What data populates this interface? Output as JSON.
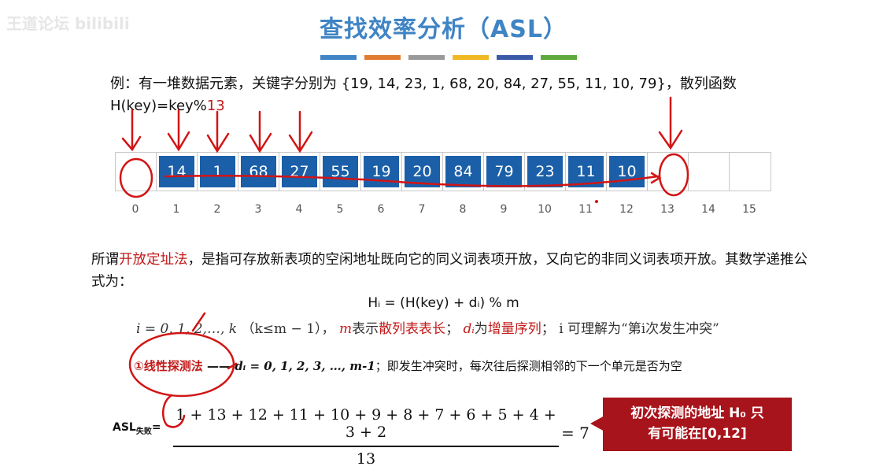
{
  "watermark": "王道论坛 bilibili",
  "title": "查找效率分析（ASL）",
  "title_bar_colors": [
    "#3f84c4",
    "#e07b30",
    "#9a9a9a",
    "#f0b823",
    "#3a5aa8",
    "#5ea83c"
  ],
  "example": {
    "prefix": "例：有一堆数据元素，关键字分别为 {19, 14, 23, 1, 68, 20, 84, 27, 55, 11, 10, 79}，散列函数",
    "hash_text": "H(key)=key%",
    "hash_mod": "13"
  },
  "table": {
    "cells": [
      "",
      "14",
      "1",
      "68",
      "27",
      "55",
      "19",
      "20",
      "84",
      "79",
      "23",
      "11",
      "10",
      "",
      "",
      ""
    ],
    "indices": [
      "0",
      "1",
      "2",
      "3",
      "4",
      "5",
      "6",
      "7",
      "8",
      "9",
      "10",
      "11",
      "12",
      "13",
      "14",
      "15"
    ]
  },
  "paragraph": {
    "part1": "所谓",
    "term": "开放定址法",
    "part2": "，是指可存放新表项的空闲地址既向它的同义词表项开放，又向它的非同义词表项开放。其数学递推公式为："
  },
  "formula1": "Hᵢ = (H(key) + dᵢ) % m",
  "formula2": {
    "lhs": "i = 0, 1, 2,…, k",
    "cond": "（k≤m − 1），",
    "m_var": "m",
    "m_desc": "表示",
    "m_term": "散列表表长",
    "sep1": "；",
    "d_var": "dᵢ",
    "d_desc": "为",
    "d_term": "增量序列",
    "sep2": "；",
    "tail": "i 可理解为“第i次发生冲突”"
  },
  "linear_probe": {
    "circle_num": "①",
    "name": "线性探测法",
    "dash": "—— ",
    "formula": "dᵢ = 0, 1, 2, 3, …, m-1",
    "desc": "；即发生冲突时，每次往后探测相邻的下一个单元是否为空"
  },
  "asl": {
    "label": "ASL",
    "sub": "失败",
    "eq": "=",
    "numerator": "1 + 13 + 12 + 11 + 10 + 9 + 8 + 7 + 6 + 5 + 4 + 3 + 2",
    "denominator": "13",
    "result": "= 7"
  },
  "callout": {
    "line1": "初次探测的地址 H₀ 只",
    "line2": "有可能在[0,12]"
  }
}
